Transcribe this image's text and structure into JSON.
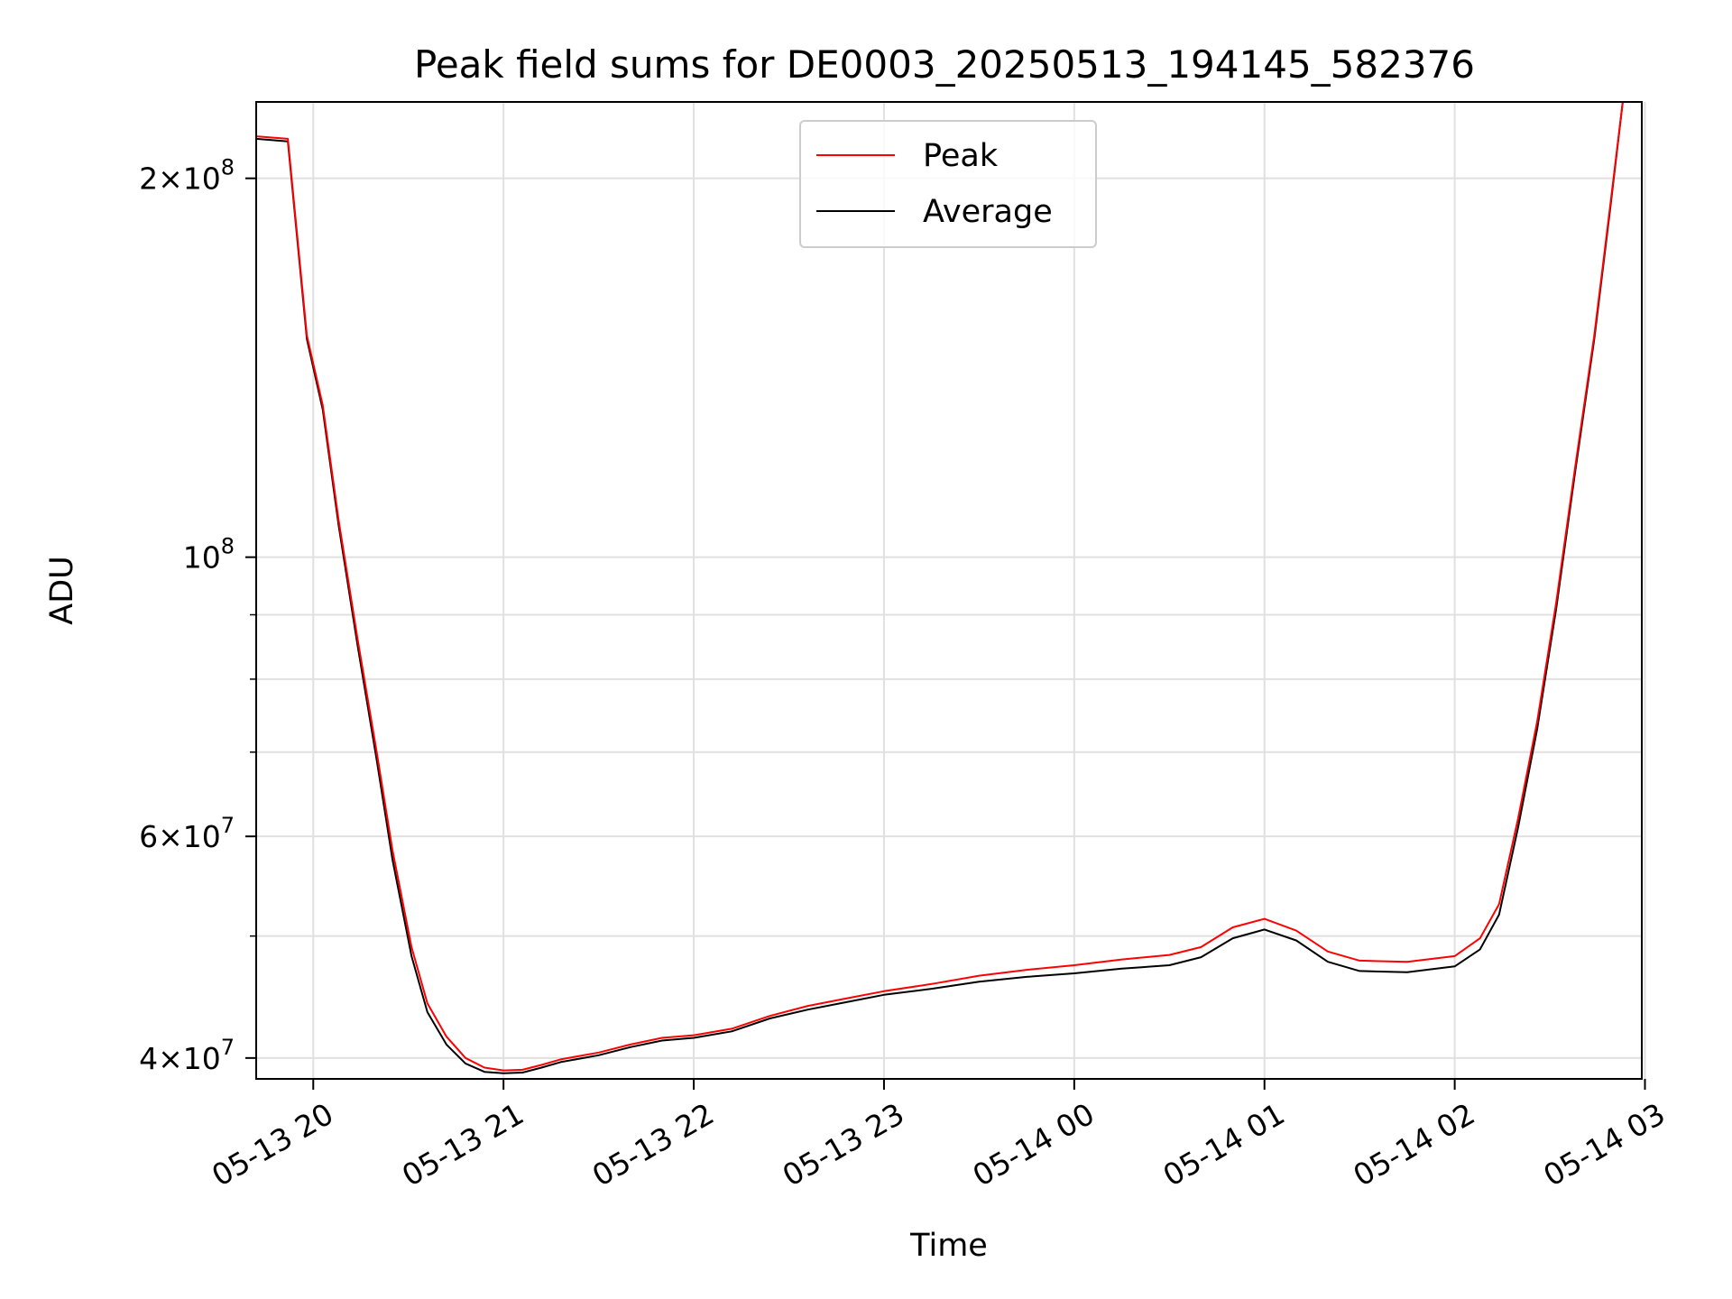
{
  "chart_data": {
    "type": "line",
    "title": "Peak field sums for DE0003_20250513_194145_582376",
    "xlabel": "Time",
    "ylabel": "ADU",
    "x_scale": "time",
    "y_scale": "log",
    "xlim": [
      "2025-05-13 19:42",
      "2025-05-14 02:59"
    ],
    "ylim": [
      38500000,
      230000000
    ],
    "grid": true,
    "legend_position": "top-center",
    "x_ticks": [
      "05-13 20",
      "05-13 21",
      "05-13 22",
      "05-13 23",
      "05-14 00",
      "05-14 01",
      "05-14 02",
      "05-14 03"
    ],
    "y_ticks": [
      {
        "value": 40000000,
        "base": "4",
        "exp": "7"
      },
      {
        "value": 60000000,
        "base": "6",
        "exp": "7"
      },
      {
        "value": 100000000,
        "base": "",
        "exp": "8"
      },
      {
        "value": 200000000,
        "base": "2",
        "exp": "8"
      }
    ],
    "y_minor_ticks": [
      50000000,
      70000000,
      80000000,
      90000000
    ],
    "series": [
      {
        "name": "Peak",
        "color": "#ff0000",
        "points": [
          [
            "2025-05-13 19:42",
            216000000
          ],
          [
            "2025-05-13 19:52",
            215000000
          ],
          [
            "2025-05-13 19:58",
            150000000
          ],
          [
            "2025-05-13 20:03",
            132000000
          ],
          [
            "2025-05-13 20:08",
            107000000
          ],
          [
            "2025-05-13 20:14",
            86000000
          ],
          [
            "2025-05-13 20:20",
            70000000
          ],
          [
            "2025-05-13 20:25",
            58500000
          ],
          [
            "2025-05-13 20:31",
            49000000
          ],
          [
            "2025-05-13 20:36",
            44200000
          ],
          [
            "2025-05-13 20:42",
            41600000
          ],
          [
            "2025-05-13 20:48",
            40000000
          ],
          [
            "2025-05-13 20:54",
            39300000
          ],
          [
            "2025-05-13 21:00",
            39100000
          ],
          [
            "2025-05-13 21:06",
            39150000
          ],
          [
            "2025-05-13 21:12",
            39500000
          ],
          [
            "2025-05-13 21:18",
            39900000
          ],
          [
            "2025-05-13 21:30",
            40400000
          ],
          [
            "2025-05-13 21:40",
            41000000
          ],
          [
            "2025-05-13 21:50",
            41500000
          ],
          [
            "2025-05-13 22:00",
            41700000
          ],
          [
            "2025-05-13 22:12",
            42200000
          ],
          [
            "2025-05-13 22:24",
            43200000
          ],
          [
            "2025-05-13 22:36",
            44000000
          ],
          [
            "2025-05-13 22:48",
            44600000
          ],
          [
            "2025-05-13 23:00",
            45200000
          ],
          [
            "2025-05-13 23:15",
            45800000
          ],
          [
            "2025-05-13 23:30",
            46500000
          ],
          [
            "2025-05-13 23:45",
            47000000
          ],
          [
            "2025-05-14 00:00",
            47400000
          ],
          [
            "2025-05-14 00:15",
            47900000
          ],
          [
            "2025-05-14 00:30",
            48300000
          ],
          [
            "2025-05-14 00:40",
            49000000
          ],
          [
            "2025-05-14 00:50",
            50800000
          ],
          [
            "2025-05-14 01:00",
            51600000
          ],
          [
            "2025-05-14 01:10",
            50500000
          ],
          [
            "2025-05-14 01:20",
            48600000
          ],
          [
            "2025-05-14 01:30",
            47800000
          ],
          [
            "2025-05-14 01:45",
            47700000
          ],
          [
            "2025-05-14 02:00",
            48200000
          ],
          [
            "2025-05-14 02:08",
            49800000
          ],
          [
            "2025-05-14 02:14",
            53000000
          ],
          [
            "2025-05-14 02:20",
            62000000
          ],
          [
            "2025-05-14 02:26",
            74000000
          ],
          [
            "2025-05-14 02:32",
            92000000
          ],
          [
            "2025-05-14 02:38",
            118000000
          ],
          [
            "2025-05-14 02:44",
            150000000
          ],
          [
            "2025-05-14 02:49",
            190000000
          ],
          [
            "2025-05-14 02:53",
            230000000
          ]
        ]
      },
      {
        "name": "Average",
        "color": "#000000",
        "points": [
          [
            "2025-05-13 19:42",
            215000000
          ],
          [
            "2025-05-13 19:52",
            214000000
          ],
          [
            "2025-05-13 19:58",
            149000000
          ],
          [
            "2025-05-13 20:03",
            131000000
          ],
          [
            "2025-05-13 20:08",
            106000000
          ],
          [
            "2025-05-13 20:14",
            85000000
          ],
          [
            "2025-05-13 20:20",
            69000000
          ],
          [
            "2025-05-13 20:25",
            57500000
          ],
          [
            "2025-05-13 20:31",
            48200000
          ],
          [
            "2025-05-13 20:36",
            43500000
          ],
          [
            "2025-05-13 20:42",
            41000000
          ],
          [
            "2025-05-13 20:48",
            39600000
          ],
          [
            "2025-05-13 20:54",
            39000000
          ],
          [
            "2025-05-13 21:00",
            38900000
          ],
          [
            "2025-05-13 21:06",
            38950000
          ],
          [
            "2025-05-13 21:12",
            39300000
          ],
          [
            "2025-05-13 21:18",
            39700000
          ],
          [
            "2025-05-13 21:30",
            40200000
          ],
          [
            "2025-05-13 21:40",
            40800000
          ],
          [
            "2025-05-13 21:50",
            41300000
          ],
          [
            "2025-05-13 22:00",
            41500000
          ],
          [
            "2025-05-13 22:12",
            42000000
          ],
          [
            "2025-05-13 22:24",
            43000000
          ],
          [
            "2025-05-13 22:36",
            43700000
          ],
          [
            "2025-05-13 22:48",
            44300000
          ],
          [
            "2025-05-13 23:00",
            44900000
          ],
          [
            "2025-05-13 23:15",
            45400000
          ],
          [
            "2025-05-13 23:30",
            46000000
          ],
          [
            "2025-05-13 23:45",
            46400000
          ],
          [
            "2025-05-14 00:00",
            46700000
          ],
          [
            "2025-05-14 00:15",
            47100000
          ],
          [
            "2025-05-14 00:30",
            47400000
          ],
          [
            "2025-05-14 00:40",
            48100000
          ],
          [
            "2025-05-14 00:50",
            49800000
          ],
          [
            "2025-05-14 01:00",
            50600000
          ],
          [
            "2025-05-14 01:10",
            49600000
          ],
          [
            "2025-05-14 01:20",
            47700000
          ],
          [
            "2025-05-14 01:30",
            46900000
          ],
          [
            "2025-05-14 01:45",
            46800000
          ],
          [
            "2025-05-14 02:00",
            47300000
          ],
          [
            "2025-05-14 02:08",
            48800000
          ],
          [
            "2025-05-14 02:14",
            52000000
          ],
          [
            "2025-05-14 02:20",
            61000000
          ],
          [
            "2025-05-14 02:26",
            73000000
          ],
          [
            "2025-05-14 02:32",
            91000000
          ],
          [
            "2025-05-14 02:38",
            117000000
          ],
          [
            "2025-05-14 02:44",
            149000000
          ],
          [
            "2025-05-14 02:49",
            189000000
          ],
          [
            "2025-05-14 02:53",
            230000000
          ]
        ]
      }
    ]
  }
}
